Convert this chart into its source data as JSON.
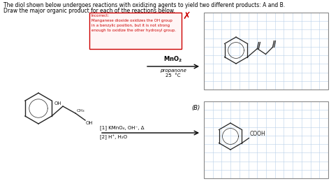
{
  "title_line1": "The diol shown below undergoes reactions with oxidizing agents to yield two different products: A and B.",
  "title_line2": "Draw the major organic product for each of the reactions below.",
  "incorrect_text": "Incorrect:\nManganese dioxide oxidizes the OH group\nin a benzylic position, but it is not strong\nenough to oxidize the other hydroxyl group.",
  "reaction_a_reagent": "MnO$_2$",
  "reaction_a_solvent": "propanone",
  "reaction_a_temp": "25  °C",
  "reaction_b_label": "(B)",
  "reaction_b_line1": "[1] KMnO₄, OH⁻, Δ",
  "reaction_b_line2": "[2] H⁺, H₂O",
  "background": "#ffffff",
  "incorrect_border": "#cc0000",
  "incorrect_text_color": "#cc0000",
  "grid_color": "#b8d0e8",
  "x_color": "#cc0000",
  "arrow_color": "#000000",
  "text_color": "#000000",
  "mol_color": "#222222"
}
